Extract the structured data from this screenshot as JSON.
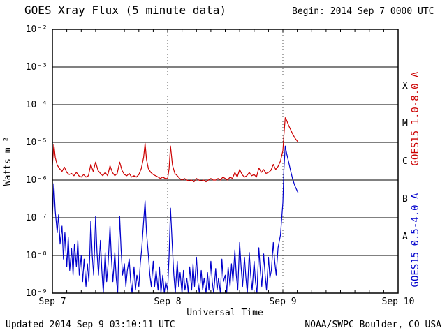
{
  "header": {
    "title": "GOES Xray Flux (5 minute data)",
    "begin_label": "Begin: 2014 Sep 7 0000 UTC"
  },
  "footer": {
    "updated": "Updated 2014 Sep  9 03:10:11 UTC",
    "credit": "NOAA/SWPC Boulder, CO USA"
  },
  "colors": {
    "long_channel": "#cc0000",
    "short_channel": "#0000cc",
    "grid": "#000000",
    "day_line": "#555555"
  },
  "chart_data": {
    "type": "line",
    "title": "GOES Xray Flux (5 minute data)",
    "subtitle": "Begin: 2014 Sep 7 0000 UTC",
    "xlabel": "Universal Time",
    "ylabel": "Watts m⁻²",
    "x_axis_note": "hours since 2014 Sep 7 0000 UTC",
    "xlim_hours": [
      0,
      72
    ],
    "ylim": [
      1e-09,
      0.01
    ],
    "grid": "log decades, solid horizontal lines; dotted vertical lines at day boundaries",
    "legend_position": "right-side rotated channel labels",
    "x_minor_tick_hours": 3,
    "x_ticks": [
      {
        "hours": 0,
        "label": "Sep 7"
      },
      {
        "hours": 24,
        "label": "Sep 8"
      },
      {
        "hours": 48,
        "label": "Sep 9"
      },
      {
        "hours": 72,
        "label": "Sep 10"
      }
    ],
    "y_ticks": [
      {
        "value": 0.01,
        "label": "10⁻²"
      },
      {
        "value": 0.001,
        "label": "10⁻³"
      },
      {
        "value": 0.0001,
        "label": "10⁻⁴"
      },
      {
        "value": 1e-05,
        "label": "10⁻⁵"
      },
      {
        "value": 1e-06,
        "label": "10⁻⁶"
      },
      {
        "value": 1e-07,
        "label": "10⁻⁷"
      },
      {
        "value": 1e-08,
        "label": "10⁻⁸"
      },
      {
        "value": 1e-09,
        "label": "10⁻⁹"
      }
    ],
    "y_gridlines": [
      0.001,
      0.0001,
      1e-05,
      1e-06,
      1e-07,
      1e-08
    ],
    "day_boundary_lines_hours": [
      24,
      48
    ],
    "flare_classes": [
      {
        "label": "X",
        "upper": 0.001,
        "lower": 0.0001
      },
      {
        "label": "M",
        "upper": 0.0001,
        "lower": 1e-05
      },
      {
        "label": "C",
        "upper": 1e-05,
        "lower": 1e-06
      },
      {
        "label": "B",
        "upper": 1e-06,
        "lower": 1e-07
      },
      {
        "label": "A",
        "upper": 1e-07,
        "lower": 1e-08
      }
    ],
    "series": [
      {
        "name": "GOES15 1.0-8.0 A",
        "color": "#cc0000",
        "points": [
          [
            0,
            2.5e-06
          ],
          [
            0.3,
            9e-06
          ],
          [
            0.6,
            4e-06
          ],
          [
            1,
            2.5e-06
          ],
          [
            1.5,
            2e-06
          ],
          [
            2,
            1.7e-06
          ],
          [
            2.5,
            2.2e-06
          ],
          [
            3,
            1.6e-06
          ],
          [
            3.5,
            1.4e-06
          ],
          [
            4,
            1.5e-06
          ],
          [
            4.5,
            1.3e-06
          ],
          [
            5,
            1.6e-06
          ],
          [
            5.5,
            1.3e-06
          ],
          [
            6,
            1.2e-06
          ],
          [
            6.5,
            1.4e-06
          ],
          [
            7,
            1.2e-06
          ],
          [
            7.5,
            1.3e-06
          ],
          [
            8,
            2.6e-06
          ],
          [
            8.5,
            1.7e-06
          ],
          [
            9,
            3e-06
          ],
          [
            9.5,
            1.8e-06
          ],
          [
            10,
            1.5e-06
          ],
          [
            10.5,
            1.3e-06
          ],
          [
            11,
            1.6e-06
          ],
          [
            11.5,
            1.3e-06
          ],
          [
            12,
            2.4e-06
          ],
          [
            12.5,
            1.6e-06
          ],
          [
            13,
            1.3e-06
          ],
          [
            13.5,
            1.5e-06
          ],
          [
            14,
            3e-06
          ],
          [
            14.5,
            1.8e-06
          ],
          [
            15,
            1.4e-06
          ],
          [
            15.5,
            1.3e-06
          ],
          [
            16,
            1.5e-06
          ],
          [
            16.5,
            1.2e-06
          ],
          [
            17,
            1.3e-06
          ],
          [
            17.5,
            1.2e-06
          ],
          [
            18,
            1.4e-06
          ],
          [
            18.5,
            2e-06
          ],
          [
            19,
            4e-06
          ],
          [
            19.3,
            9.5e-06
          ],
          [
            19.6,
            3.5e-06
          ],
          [
            20,
            2e-06
          ],
          [
            20.5,
            1.6e-06
          ],
          [
            21,
            1.4e-06
          ],
          [
            21.5,
            1.3e-06
          ],
          [
            22,
            1.2e-06
          ],
          [
            22.5,
            1.1e-06
          ],
          [
            23,
            1.2e-06
          ],
          [
            23.5,
            1.1e-06
          ],
          [
            24,
            1.1e-06
          ],
          [
            24.3,
            2e-06
          ],
          [
            24.6,
            8e-06
          ],
          [
            25,
            2.5e-06
          ],
          [
            25.5,
            1.5e-06
          ],
          [
            26,
            1.3e-06
          ],
          [
            26.5,
            1.1e-06
          ],
          [
            27,
            1e-06
          ],
          [
            27.5,
            1.1e-06
          ],
          [
            28,
            1e-06
          ],
          [
            28.5,
            9.5e-07
          ],
          [
            29,
            1e-06
          ],
          [
            29.5,
            9e-07
          ],
          [
            30,
            1.1e-06
          ],
          [
            30.5,
            1e-06
          ],
          [
            31,
            9.5e-07
          ],
          [
            31.5,
            1e-06
          ],
          [
            32,
            9e-07
          ],
          [
            32.5,
            1e-06
          ],
          [
            33,
            1.1e-06
          ],
          [
            33.5,
            1e-06
          ],
          [
            34,
            1e-06
          ],
          [
            34.5,
            1.1e-06
          ],
          [
            35,
            1e-06
          ],
          [
            35.5,
            1.2e-06
          ],
          [
            36,
            1.1e-06
          ],
          [
            36.5,
            1e-06
          ],
          [
            37,
            1.2e-06
          ],
          [
            37.5,
            1.1e-06
          ],
          [
            38,
            1.6e-06
          ],
          [
            38.5,
            1.2e-06
          ],
          [
            39,
            1.9e-06
          ],
          [
            39.5,
            1.4e-06
          ],
          [
            40,
            1.2e-06
          ],
          [
            40.5,
            1.3e-06
          ],
          [
            41,
            1.6e-06
          ],
          [
            41.5,
            1.3e-06
          ],
          [
            42,
            1.4e-06
          ],
          [
            42.5,
            1.2e-06
          ],
          [
            43,
            2.1e-06
          ],
          [
            43.5,
            1.6e-06
          ],
          [
            44,
            1.9e-06
          ],
          [
            44.5,
            1.5e-06
          ],
          [
            45,
            1.6e-06
          ],
          [
            45.5,
            1.8e-06
          ],
          [
            46,
            2.6e-06
          ],
          [
            46.5,
            1.9e-06
          ],
          [
            47,
            2.3e-06
          ],
          [
            47.5,
            3.2e-06
          ],
          [
            48,
            6e-06
          ],
          [
            48.2,
            1.5e-05
          ],
          [
            48.5,
            4.5e-05
          ],
          [
            48.8,
            3.8e-05
          ],
          [
            49.2,
            2.8e-05
          ],
          [
            49.6,
            2.2e-05
          ],
          [
            50,
            1.7e-05
          ],
          [
            50.5,
            1.3e-05
          ],
          [
            51.2,
            1e-05
          ]
        ]
      },
      {
        "name": "GOES15 0.5-4.0 A",
        "color": "#0000cc",
        "points": [
          [
            0,
            1.2e-07
          ],
          [
            0.3,
            8e-07
          ],
          [
            0.6,
            1.5e-07
          ],
          [
            1,
            4e-08
          ],
          [
            1.3,
            1.2e-07
          ],
          [
            1.6,
            2e-08
          ],
          [
            2,
            6e-08
          ],
          [
            2.3,
            8e-09
          ],
          [
            2.6,
            4e-08
          ],
          [
            3,
            5e-09
          ],
          [
            3.3,
            3e-08
          ],
          [
            3.6,
            4e-09
          ],
          [
            4,
            1.5e-08
          ],
          [
            4.3,
            3e-09
          ],
          [
            4.6,
            2e-08
          ],
          [
            5,
            5e-09
          ],
          [
            5.3,
            2.5e-08
          ],
          [
            5.6,
            3e-09
          ],
          [
            6,
            1e-08
          ],
          [
            6.3,
            2e-09
          ],
          [
            6.6,
            8e-09
          ],
          [
            7,
            1.5e-09
          ],
          [
            7.3,
            6e-09
          ],
          [
            7.6,
            2e-09
          ],
          [
            8,
            8e-08
          ],
          [
            8.3,
            1e-08
          ],
          [
            8.6,
            3e-09
          ],
          [
            9,
            1.1e-07
          ],
          [
            9.3,
            1.2e-08
          ],
          [
            9.6,
            3e-09
          ],
          [
            10,
            2.5e-08
          ],
          [
            10.3,
            4e-09
          ],
          [
            10.6,
            1e-09
          ],
          [
            11,
            1.2e-08
          ],
          [
            11.3,
            2e-09
          ],
          [
            11.6,
            6e-09
          ],
          [
            12,
            6e-08
          ],
          [
            12.3,
            8e-09
          ],
          [
            12.6,
            2e-09
          ],
          [
            13,
            1.2e-08
          ],
          [
            13.3,
            2.5e-09
          ],
          [
            13.6,
            1e-09
          ],
          [
            14,
            1.1e-07
          ],
          [
            14.3,
            1.5e-08
          ],
          [
            14.6,
            3e-09
          ],
          [
            15,
            6e-09
          ],
          [
            15.3,
            1.5e-09
          ],
          [
            15.6,
            4e-09
          ],
          [
            16,
            8e-09
          ],
          [
            16.3,
            2e-09
          ],
          [
            16.6,
            1e-09
          ],
          [
            17,
            5e-09
          ],
          [
            17.3,
            1.2e-09
          ],
          [
            17.6,
            3e-09
          ],
          [
            18,
            1.5e-09
          ],
          [
            18.3,
            6e-09
          ],
          [
            18.6,
            1.5e-08
          ],
          [
            19,
            8e-08
          ],
          [
            19.3,
            2.8e-07
          ],
          [
            19.6,
            4e-08
          ],
          [
            20,
            1e-08
          ],
          [
            20.3,
            3e-09
          ],
          [
            20.6,
            1.5e-09
          ],
          [
            21,
            7e-09
          ],
          [
            21.3,
            1.5e-09
          ],
          [
            21.6,
            4e-09
          ],
          [
            22,
            1.2e-09
          ],
          [
            22.3,
            5e-09
          ],
          [
            22.6,
            1e-09
          ],
          [
            23,
            3e-09
          ],
          [
            23.3,
            1e-09
          ],
          [
            23.6,
            2e-09
          ],
          [
            24,
            1.2e-09
          ],
          [
            24.3,
            1e-08
          ],
          [
            24.6,
            1.8e-07
          ],
          [
            25,
            1.5e-08
          ],
          [
            25.3,
            3e-09
          ],
          [
            25.6,
            1e-09
          ],
          [
            26,
            7e-09
          ],
          [
            26.3,
            1.5e-09
          ],
          [
            26.6,
            3.5e-09
          ],
          [
            27,
            1e-09
          ],
          [
            27.3,
            4e-09
          ],
          [
            27.6,
            1.2e-09
          ],
          [
            28,
            2.5e-09
          ],
          [
            28.3,
            1e-09
          ],
          [
            28.6,
            5e-09
          ],
          [
            29,
            1.2e-09
          ],
          [
            29.3,
            6e-09
          ],
          [
            29.6,
            1.5e-09
          ],
          [
            30,
            9e-09
          ],
          [
            30.3,
            2e-09
          ],
          [
            30.6,
            1e-09
          ],
          [
            31,
            4e-09
          ],
          [
            31.3,
            1.2e-09
          ],
          [
            31.6,
            2.5e-09
          ],
          [
            32,
            1e-09
          ],
          [
            32.3,
            3.5e-09
          ],
          [
            32.6,
            1.2e-09
          ],
          [
            33,
            7e-09
          ],
          [
            33.3,
            2e-09
          ],
          [
            33.6,
            1e-09
          ],
          [
            34,
            4.5e-09
          ],
          [
            34.3,
            1.2e-09
          ],
          [
            34.6,
            2.5e-09
          ],
          [
            35,
            1e-09
          ],
          [
            35.3,
            8e-09
          ],
          [
            35.6,
            2e-09
          ],
          [
            36,
            3e-09
          ],
          [
            36.3,
            1e-09
          ],
          [
            36.6,
            5e-09
          ],
          [
            37,
            1.5e-09
          ],
          [
            37.3,
            6e-09
          ],
          [
            37.6,
            2e-09
          ],
          [
            38,
            1.4e-08
          ],
          [
            38.3,
            3e-09
          ],
          [
            38.6,
            1.2e-09
          ],
          [
            39,
            2.2e-08
          ],
          [
            39.3,
            5e-09
          ],
          [
            39.6,
            1.5e-09
          ],
          [
            40,
            9e-09
          ],
          [
            40.3,
            2.5e-09
          ],
          [
            40.6,
            1e-09
          ],
          [
            41,
            1.2e-08
          ],
          [
            41.3,
            3e-09
          ],
          [
            41.6,
            1.2e-09
          ],
          [
            42,
            7e-09
          ],
          [
            42.3,
            2e-09
          ],
          [
            42.6,
            1e-09
          ],
          [
            43,
            1.6e-08
          ],
          [
            43.3,
            4e-09
          ],
          [
            43.6,
            1.5e-09
          ],
          [
            44,
            1.1e-08
          ],
          [
            44.3,
            3e-09
          ],
          [
            44.6,
            1.2e-09
          ],
          [
            45,
            9e-09
          ],
          [
            45.3,
            2.5e-09
          ],
          [
            45.6,
            4e-09
          ],
          [
            46,
            2.2e-08
          ],
          [
            46.3,
            7e-09
          ],
          [
            46.6,
            3e-09
          ],
          [
            47,
            1.6e-08
          ],
          [
            47.5,
            3.5e-08
          ],
          [
            48,
            2.5e-07
          ],
          [
            48.2,
            1.8e-06
          ],
          [
            48.5,
            8e-06
          ],
          [
            48.8,
            5e-06
          ],
          [
            49.2,
            3e-06
          ],
          [
            49.6,
            1.8e-06
          ],
          [
            50,
            1.1e-06
          ],
          [
            50.5,
            7e-07
          ],
          [
            51.2,
            4.5e-07
          ]
        ]
      }
    ]
  }
}
